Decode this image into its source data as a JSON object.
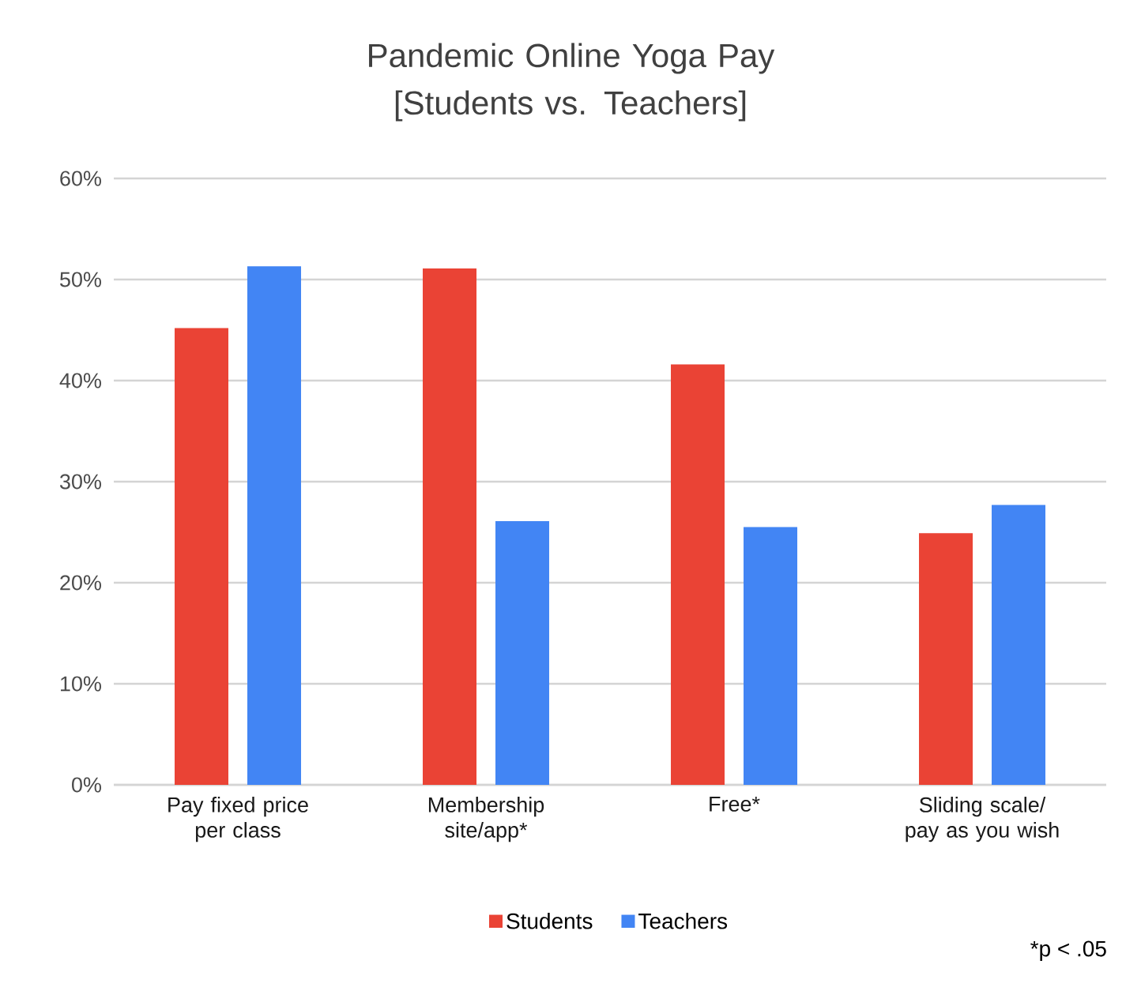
{
  "chart_data": {
    "type": "bar",
    "title": "Pandemic Online Yoga Pay\n[Students vs. Teachers]",
    "categories": [
      "Pay fixed price per class",
      "Membership site/app*",
      "Free*",
      "Sliding scale/ pay as you wish"
    ],
    "series": [
      {
        "name": "Students",
        "color": "#ea4335",
        "values": [
          45.2,
          51.1,
          41.6,
          24.9
        ]
      },
      {
        "name": "Teachers",
        "color": "#4285f4",
        "values": [
          51.3,
          26.1,
          25.5,
          27.7
        ]
      }
    ],
    "ylim": [
      0,
      60
    ],
    "yticks": [
      {
        "value": 0,
        "label": "0%"
      },
      {
        "value": 10,
        "label": "10%"
      },
      {
        "value": 20,
        "label": "20%"
      },
      {
        "value": 30,
        "label": "30%"
      },
      {
        "value": 40,
        "label": "40%"
      },
      {
        "value": 50,
        "label": "50%"
      },
      {
        "value": 60,
        "label": "60%"
      }
    ],
    "grid": "y",
    "legend": "bottom",
    "annotations": [
      "*p < .05"
    ]
  }
}
